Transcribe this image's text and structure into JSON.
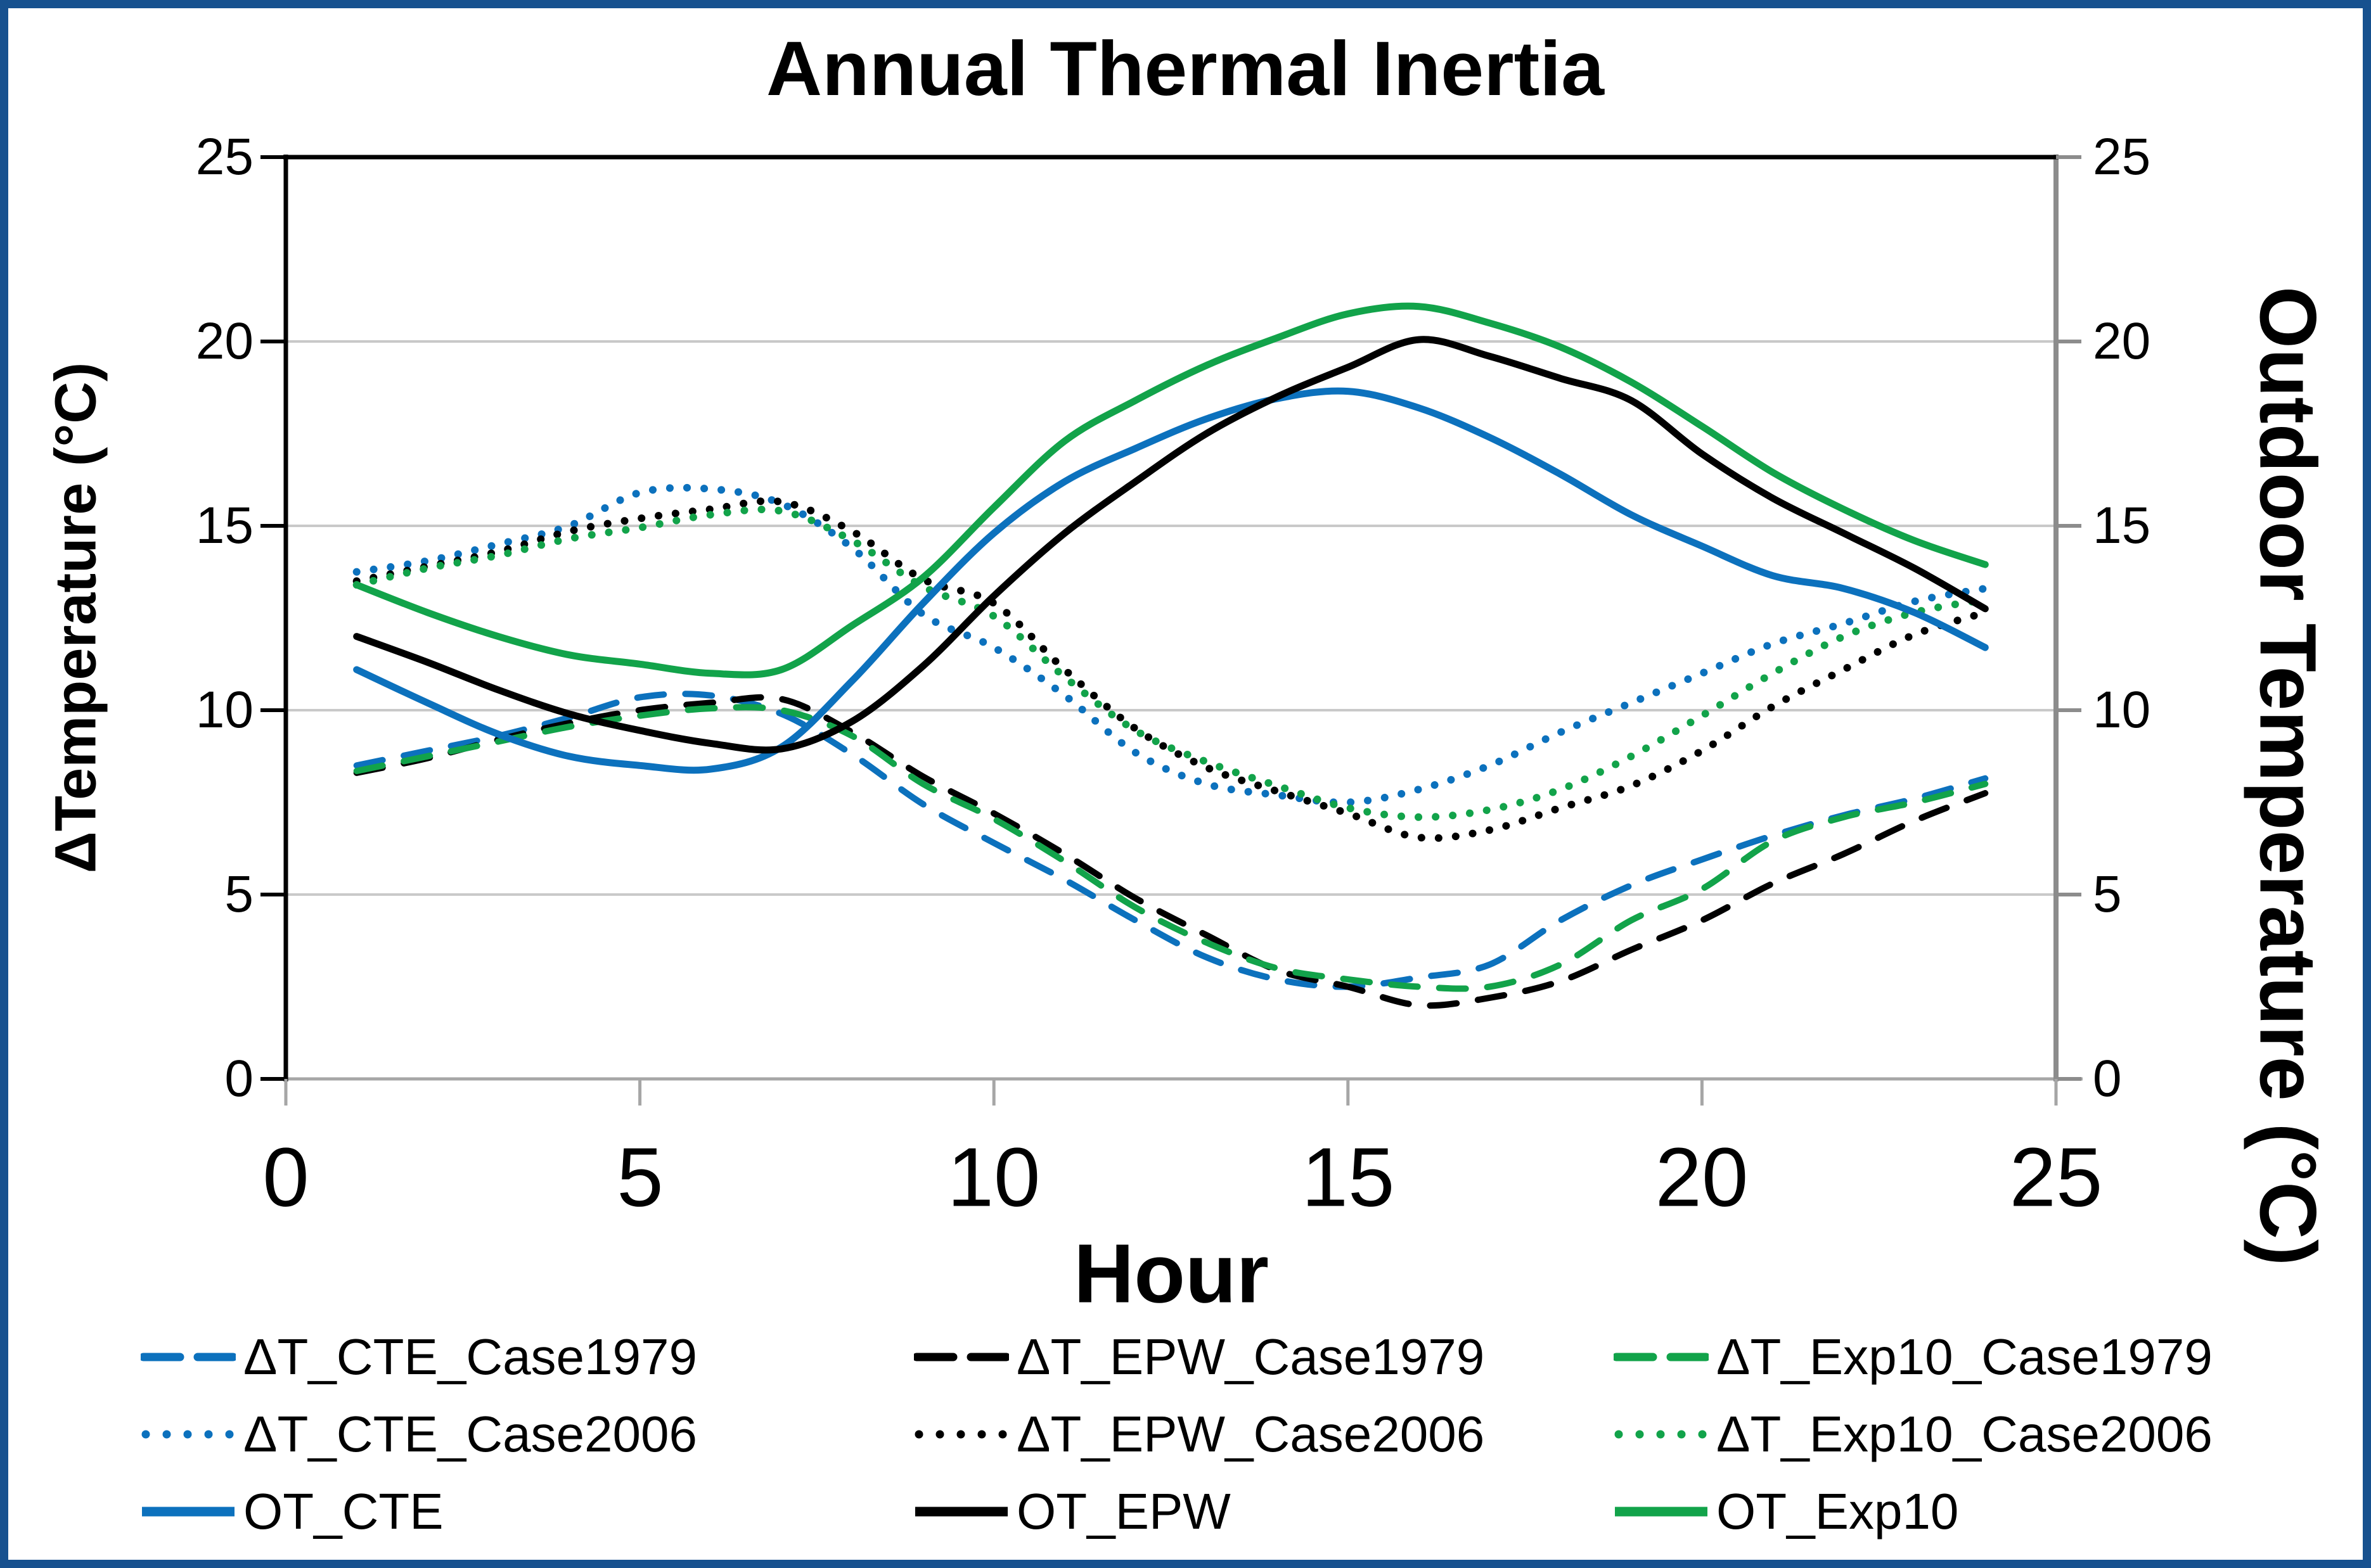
{
  "title": "Annual Thermal Inertia",
  "frame_color": "#17518F",
  "axes": {
    "left_label": "ΔTemperature (°C)",
    "right_label": "Outdoor Temperature (°C)",
    "x_label": "Hour",
    "y_ticks": [
      "25",
      "20",
      "15",
      "10",
      "5",
      "0"
    ],
    "x_ticks": [
      "0",
      "5",
      "10",
      "15",
      "20",
      "25"
    ]
  },
  "chart_data": {
    "type": "line",
    "title": "Annual Thermal Inertia",
    "xlabel": "Hour",
    "ylabel_left": "ΔTemperature (°C)",
    "ylabel_right": "Outdoor Temperature (°C)",
    "xlim": [
      0,
      25
    ],
    "ylim": [
      0,
      25
    ],
    "x_tick_values": [
      0,
      5,
      10,
      15,
      20,
      25
    ],
    "y_tick_values": [
      0,
      5,
      10,
      15,
      20,
      25
    ],
    "grid": "horizontal",
    "grid_color": "#C9C9C9",
    "axis_gray": "#8C8C8C",
    "legend_position": "bottom",
    "x": [
      1,
      2,
      3,
      4,
      5,
      6,
      7,
      8,
      9,
      10,
      11,
      12,
      13,
      14,
      15,
      16,
      17,
      18,
      19,
      20,
      21,
      22,
      23,
      24
    ],
    "series": [
      {
        "label": "ΔT_CTE_Case1979",
        "style": "dashed",
        "color": "#0C71BD",
        "axis": "left",
        "values": [
          8.5,
          8.9,
          9.3,
          9.8,
          10.35,
          10.4,
          9.9,
          8.8,
          7.45,
          6.4,
          5.4,
          4.3,
          3.3,
          2.7,
          2.5,
          2.75,
          3.1,
          4.3,
          5.25,
          5.95,
          6.6,
          7.15,
          7.6,
          8.15
        ]
      },
      {
        "label": "ΔT_EPW_Case1979",
        "style": "dashed",
        "color": "#000000",
        "axis": "left",
        "values": [
          8.3,
          8.7,
          9.2,
          9.65,
          10.0,
          10.2,
          10.3,
          9.4,
          8.2,
          7.2,
          6.1,
          4.9,
          3.9,
          2.95,
          2.5,
          2.0,
          2.2,
          2.65,
          3.5,
          4.3,
          5.3,
          6.1,
          7.0,
          7.75
        ]
      },
      {
        "label": "ΔT_Exp10_Case1979",
        "style": "dashed",
        "color": "#12A34A",
        "axis": "left",
        "values": [
          8.35,
          8.75,
          9.15,
          9.55,
          9.85,
          10.05,
          10.0,
          9.3,
          8.0,
          7.05,
          5.9,
          4.65,
          3.7,
          3.0,
          2.7,
          2.5,
          2.5,
          3.1,
          4.3,
          5.15,
          6.45,
          7.1,
          7.5,
          8.0
        ]
      },
      {
        "label": "ΔT_CTE_Case2006",
        "style": "dotted",
        "color": "#0C71BD",
        "axis": "left",
        "values": [
          13.75,
          14.05,
          14.5,
          15.0,
          15.9,
          16.0,
          15.6,
          14.4,
          12.6,
          11.7,
          10.4,
          8.85,
          8.0,
          7.7,
          7.5,
          7.85,
          8.5,
          9.4,
          10.2,
          11.0,
          11.8,
          12.35,
          12.95,
          13.3
        ]
      },
      {
        "label": "ΔT_EPW_Case2006",
        "style": "dotted",
        "color": "#000000",
        "axis": "left",
        "values": [
          13.5,
          13.9,
          14.3,
          14.85,
          15.2,
          15.45,
          15.65,
          14.85,
          13.55,
          12.9,
          11.1,
          9.5,
          8.45,
          7.8,
          7.2,
          6.55,
          6.75,
          7.35,
          7.95,
          8.9,
          10.1,
          11.1,
          12.05,
          12.65
        ]
      },
      {
        "label": "ΔT_Exp10_Case2006",
        "style": "dotted",
        "color": "#12A34A",
        "axis": "left",
        "values": [
          13.4,
          13.85,
          14.2,
          14.65,
          14.95,
          15.3,
          15.4,
          14.6,
          13.35,
          12.55,
          10.9,
          9.45,
          8.6,
          7.95,
          7.35,
          7.1,
          7.3,
          7.85,
          8.75,
          9.85,
          11.0,
          12.0,
          12.65,
          13.0
        ]
      },
      {
        "label": "OT_CTE",
        "style": "solid",
        "color": "#0C71BD",
        "axis": "right",
        "values": [
          11.1,
          10.2,
          9.35,
          8.75,
          8.5,
          8.4,
          9.0,
          10.8,
          12.9,
          14.8,
          16.2,
          17.1,
          17.9,
          18.45,
          18.65,
          18.2,
          17.4,
          16.4,
          15.3,
          14.45,
          13.65,
          13.3,
          12.65,
          11.7
        ]
      },
      {
        "label": "OT_EPW",
        "style": "solid",
        "color": "#000000",
        "axis": "right",
        "values": [
          12.0,
          11.3,
          10.55,
          9.9,
          9.45,
          9.1,
          8.95,
          9.7,
          11.2,
          13.1,
          14.8,
          16.2,
          17.5,
          18.5,
          19.3,
          20.05,
          19.6,
          19.0,
          18.4,
          16.95,
          15.75,
          14.8,
          13.85,
          12.75
        ]
      },
      {
        "label": "OT_Exp10",
        "style": "solid",
        "color": "#12A34A",
        "axis": "right",
        "values": [
          13.4,
          12.65,
          12.0,
          11.5,
          11.25,
          11.0,
          11.1,
          12.3,
          13.6,
          15.5,
          17.3,
          18.4,
          19.35,
          20.1,
          20.75,
          20.95,
          20.5,
          19.85,
          18.9,
          17.7,
          16.45,
          15.45,
          14.6,
          13.95
        ]
      }
    ]
  }
}
